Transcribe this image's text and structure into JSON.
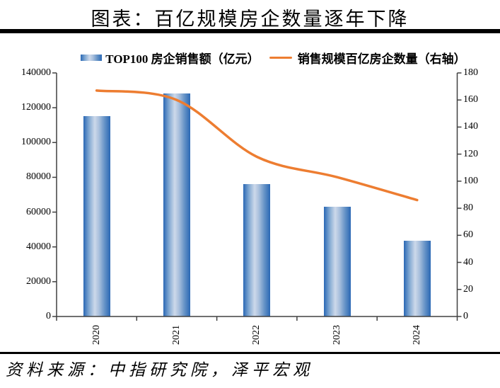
{
  "title": "图表：百亿规模房企数量逐年下降",
  "source": "资料来源：中指研究院，泽平宏观",
  "legend": {
    "bars": "TOP100 房企销售额（亿元）",
    "line": "销售规模百亿房企数量（右轴）"
  },
  "colors": {
    "bar_edge": "#2a68b5",
    "bar_light": "#cdd9ea",
    "line": "#ED7D31",
    "axis": "#404040"
  },
  "chart_data": {
    "type": "bar+line combo",
    "categories": [
      "2020",
      "2021",
      "2022",
      "2023",
      "2024"
    ],
    "series": [
      {
        "name": "TOP100 房企销售额（亿元）",
        "type": "bar",
        "axis": "left",
        "values": [
          115000,
          128000,
          76000,
          63000,
          43500
        ]
      },
      {
        "name": "销售规模百亿房企数量（右轴）",
        "type": "line",
        "axis": "right",
        "values": [
          167,
          160,
          118,
          103,
          86
        ]
      }
    ],
    "left_axis": {
      "min": 0,
      "max": 140000,
      "step": 20000
    },
    "right_axis": {
      "min": 0,
      "max": 180,
      "step": 20
    },
    "grid": false,
    "legend_position": "top",
    "line_smooth": true
  }
}
